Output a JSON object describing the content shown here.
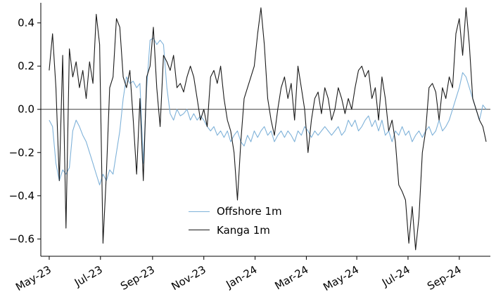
{
  "chart_data": {
    "type": "line",
    "title": "",
    "xlabel": "",
    "ylabel": "",
    "x_unit": "days since 2023-05-01",
    "x_step": 4,
    "xlim": [
      -10,
      525
    ],
    "ylim": [
      -0.68,
      0.48
    ],
    "grid": false,
    "zero_line": true,
    "axis_color": "#000000",
    "xticks": {
      "positions": [
        0,
        61,
        123,
        184,
        245,
        306,
        366,
        427,
        488
      ],
      "labels": [
        "May-23",
        "Jul-23",
        "Sep-23",
        "Nov-23",
        "Jan-24",
        "Mar-24",
        "May-24",
        "Jul-24",
        "Sep-24"
      ],
      "rotation_deg": 30
    },
    "yticks": {
      "positions": [
        0.4,
        0.2,
        0.0,
        -0.2,
        -0.4,
        -0.6
      ],
      "labels": [
        "0.4",
        "0.2",
        "0.0",
        "−0.2",
        "−0.4",
        "−0.6"
      ]
    },
    "legend": {
      "position": "lower-center",
      "frame": false
    },
    "series": [
      {
        "name": "Offshore 1m",
        "color": "#7fb2d9",
        "line_width": 1.1,
        "values": [
          -0.05,
          -0.08,
          -0.25,
          -0.33,
          -0.28,
          -0.3,
          -0.27,
          -0.1,
          -0.05,
          -0.08,
          -0.12,
          -0.15,
          -0.2,
          -0.25,
          -0.3,
          -0.35,
          -0.3,
          -0.33,
          -0.28,
          -0.3,
          -0.2,
          -0.1,
          0.05,
          0.15,
          0.12,
          0.13,
          0.1,
          0.12,
          -0.25,
          0.1,
          0.32,
          0.33,
          0.3,
          0.32,
          0.3,
          0.1,
          -0.02,
          -0.05,
          0.0,
          -0.03,
          -0.02,
          0.0,
          -0.05,
          -0.02,
          -0.05,
          -0.03,
          -0.05,
          -0.08,
          -0.1,
          -0.08,
          -0.12,
          -0.1,
          -0.13,
          -0.1,
          -0.15,
          -0.12,
          -0.1,
          -0.15,
          -0.17,
          -0.12,
          -0.15,
          -0.1,
          -0.13,
          -0.1,
          -0.08,
          -0.12,
          -0.1,
          -0.15,
          -0.12,
          -0.1,
          -0.13,
          -0.1,
          -0.12,
          -0.15,
          -0.1,
          -0.12,
          -0.08,
          -0.1,
          -0.13,
          -0.1,
          -0.12,
          -0.1,
          -0.08,
          -0.1,
          -0.12,
          -0.1,
          -0.08,
          -0.12,
          -0.1,
          -0.05,
          -0.08,
          -0.05,
          -0.1,
          -0.08,
          -0.05,
          -0.03,
          -0.08,
          -0.05,
          -0.1,
          -0.05,
          -0.12,
          -0.1,
          -0.15,
          -0.1,
          -0.12,
          -0.08,
          -0.12,
          -0.1,
          -0.15,
          -0.12,
          -0.1,
          -0.13,
          -0.1,
          -0.08,
          -0.12,
          -0.1,
          -0.05,
          -0.1,
          -0.08,
          -0.05,
          0.0,
          0.05,
          0.1,
          0.17,
          0.15,
          0.1,
          0.05,
          0.0,
          -0.05,
          0.02,
          0.0
        ]
      },
      {
        "name": "Kanga 1m",
        "color": "#1a1a1a",
        "line_width": 1.1,
        "values": [
          0.18,
          0.35,
          0.1,
          -0.33,
          0.25,
          -0.55,
          0.28,
          0.15,
          0.22,
          0.1,
          0.18,
          0.05,
          0.22,
          0.12,
          0.44,
          0.3,
          -0.62,
          -0.3,
          0.1,
          0.15,
          0.42,
          0.38,
          0.15,
          0.1,
          0.18,
          -0.05,
          -0.3,
          0.05,
          -0.33,
          0.15,
          0.2,
          0.38,
          0.1,
          -0.08,
          0.25,
          0.22,
          0.18,
          0.25,
          0.1,
          0.12,
          0.08,
          0.15,
          0.2,
          0.15,
          0.05,
          -0.05,
          0.0,
          -0.08,
          0.15,
          0.18,
          0.12,
          0.2,
          0.05,
          -0.05,
          -0.1,
          -0.2,
          -0.42,
          -0.15,
          0.05,
          0.1,
          0.15,
          0.2,
          0.35,
          0.47,
          0.3,
          0.05,
          -0.05,
          -0.12,
          0.0,
          0.1,
          0.15,
          0.05,
          0.12,
          -0.05,
          0.2,
          0.1,
          0.0,
          -0.2,
          -0.05,
          0.05,
          0.08,
          -0.02,
          0.1,
          0.05,
          -0.05,
          0.0,
          0.1,
          0.05,
          -0.02,
          0.05,
          0.0,
          0.1,
          0.18,
          0.2,
          0.15,
          0.18,
          0.05,
          0.1,
          -0.05,
          0.15,
          0.05,
          -0.1,
          -0.05,
          -0.15,
          -0.35,
          -0.38,
          -0.42,
          -0.62,
          -0.45,
          -0.65,
          -0.5,
          -0.2,
          -0.1,
          0.1,
          0.12,
          0.08,
          -0.05,
          0.1,
          0.05,
          0.15,
          0.1,
          0.35,
          0.42,
          0.25,
          0.47,
          0.3,
          0.05,
          0.0,
          -0.05,
          -0.08,
          -0.15
        ]
      }
    ]
  }
}
